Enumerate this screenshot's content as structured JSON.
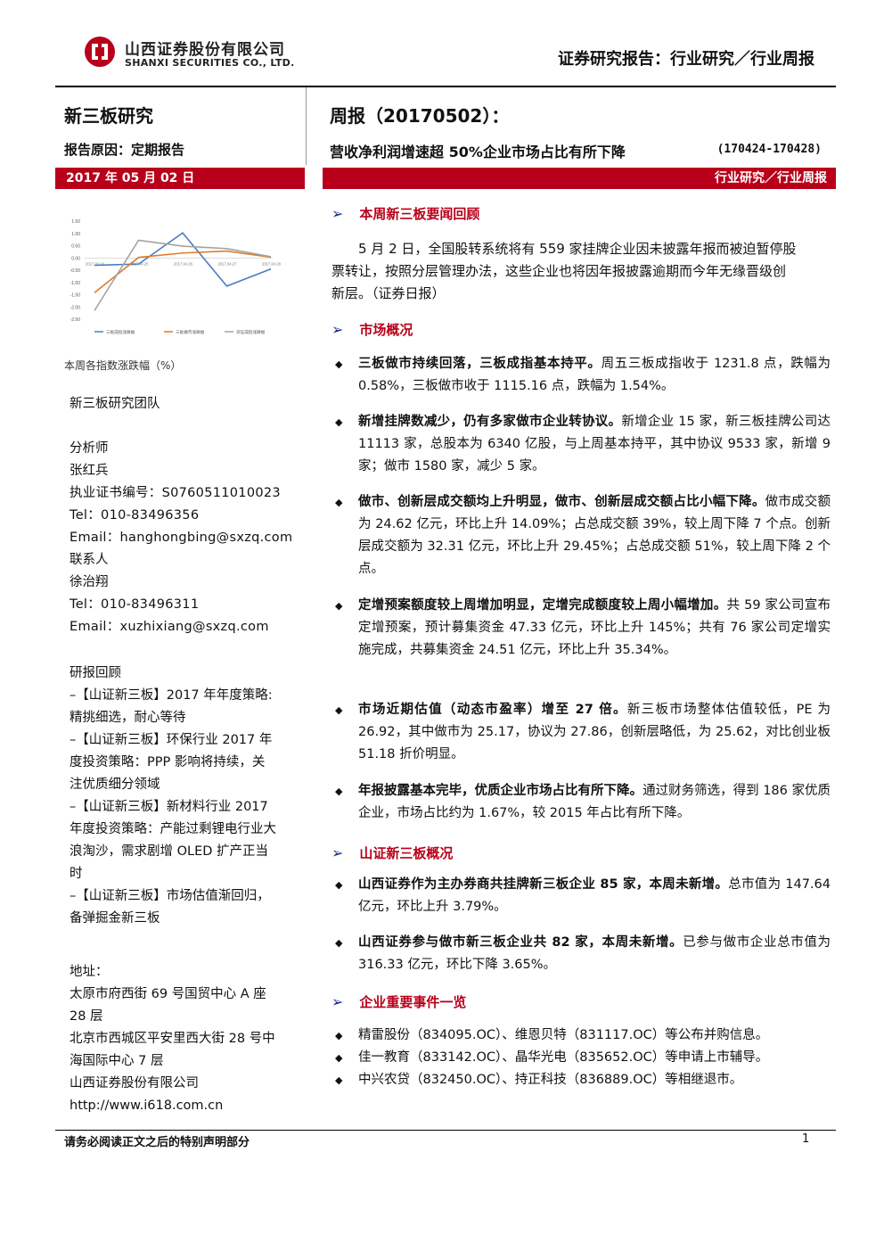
{
  "header": {
    "company_cn": "山西证券股份有限公司",
    "company_en": "SHANXI SECURITIES CO., LTD.",
    "report_type": "证券研究报告：行业研究／行业周报",
    "column_title": "新三板研究",
    "report_reason": "报告原因：定期报告",
    "week_title": "周报（20170502）：",
    "headline": "营收净利润增速超 50%企业市场占比有所下降",
    "date_range": "(170424-170428)",
    "date_bar": "2017 年 05 月 02 日",
    "category_bar": "行业研究／行业周报"
  },
  "colors": {
    "accent": "#b8001a",
    "series1": "#4a7ec0",
    "series2": "#e07b2a",
    "series3": "#a3a3a3"
  },
  "chart_data": {
    "type": "line",
    "caption": "本周各指数涨跌幅（%）",
    "y_ticks": [
      "1.50",
      "1.00",
      "0.50",
      "0.00",
      "-0.50",
      "-1.00",
      "-1.50",
      "-2.00",
      "-2.50"
    ],
    "ylim": [
      -2.5,
      1.5
    ],
    "x": [
      "2017.04.24",
      "2017.04.25",
      "2017.04.26",
      "2017.04.27",
      "2017.04.28"
    ],
    "series": [
      {
        "name": "三板成指涨跌幅",
        "values": [
          -0.3,
          -0.25,
          1.02,
          -1.15,
          -0.45
        ]
      },
      {
        "name": "三板做市涨跌幅",
        "values": [
          -1.42,
          0.02,
          0.2,
          0.28,
          0.03
        ]
      },
      {
        "name": "深证成指涨跌幅",
        "values": [
          -2.15,
          0.72,
          0.48,
          0.38,
          0.05
        ]
      }
    ],
    "legend_position": "bottom"
  },
  "left": {
    "team": "新三板研究团队",
    "analyst_label": "分析师",
    "analyst_name": "张红兵",
    "cert": "执业证书编号：S0760511010023",
    "tel1": "Tel：010-83496356",
    "email1": "Email：hanghongbing@sxzq.com",
    "contact_label": "联系人",
    "contact_name": "徐治翔",
    "tel2": "Tel：010-83496311",
    "email2": "Email：xuzhixiang@sxzq.com",
    "review_label": "研报回顾",
    "reviews": [
      [
        "–【山证新三板】2017 年年度策略:",
        "精挑细选，耐心等待"
      ],
      [
        "–【山证新三板】环保行业 2017 年",
        "度投资策略：PPP 影响将持续，关",
        "注优质细分领域"
      ],
      [
        "–【山证新三板】新材料行业 2017",
        "年度投资策略：产能过剩锂电行业大",
        "浪淘沙，需求剧增 OLED 扩产正当",
        "时"
      ],
      [
        "–【山证新三板】市场估值渐回归，",
        "备弹掘金新三板"
      ]
    ],
    "address_label": "地址：",
    "address_lines": [
      "太原市府西街 69 号国贸中心 A 座",
      "28 层",
      "北京市西城区平安里西大街 28 号中",
      "海国际中心 7 层",
      "山西证券股份有限公司",
      "http://www.i618.com.cn"
    ]
  },
  "right": {
    "sec1": "本周新三板要闻回顾",
    "news": [
      "5 月 2 日，全国股转系统将有 559 家挂牌企业因未披露年报而被迫暂停股",
      "票转让，按照分层管理办法，这些企业也将因年报披露逾期而今年无缘晋级创",
      "新层。（证券日报）"
    ],
    "sec2": "市场概况",
    "bullets": [
      {
        "bold": "三板做市持续回落，三板成指基本持平。",
        "rest": "周五三板成指收于 1231.8 点，跌幅为 0.58%，三板做市收于 1115.16 点，跌幅为 1.54%。"
      },
      {
        "bold": "新增挂牌数减少，仍有多家做市企业转协议。",
        "rest": "新增企业 15 家，新三板挂牌公司达 11113 家，总股本为 6340 亿股，与上周基本持平，其中协议 9533 家，新增 9 家；做市 1580 家，减少 5 家。"
      },
      {
        "bold": "做市、创新层成交额均上升明显，做市、创新层成交额占比小幅下降。",
        "rest": "做市成交额为 24.62 亿元，环比上升 14.09%；占总成交额 39%，较上周下降 7 个点。创新层成交额为 32.31 亿元，环比上升 29.45%；占总成交额 51%，较上周下降 2 个点。"
      },
      {
        "bold": "定增预案额度较上周增加明显，定增完成额度较上周小幅增加。",
        "rest": "共 59 家公司宣布定增预案，预计募集资金 47.33 亿元，环比上升 145%；共有 76 家公司定增实施完成，共募集资金 24.51 亿元，环比上升 35.34%。"
      },
      {
        "bold": "市场近期估值（动态市盈率）增至 27 倍。",
        "rest": "新三板市场整体估值较低，PE 为 26.92，其中做市为 25.17，协议为 27.86，创新层略低，为 25.62，对比创业板 51.18 折价明显。"
      },
      {
        "bold": "年报披露基本完毕，优质企业市场占比有所下降。",
        "rest": "通过财务筛选，得到 186 家优质企业，市场占比约为 1.67%，较 2015 年占比有所下降。"
      }
    ],
    "sec3": "山证新三板概况",
    "bullets2": [
      {
        "bold": "山西证券作为主办券商共挂牌新三板企业 85 家，本周未新增。",
        "rest": "总市值为 147.64 亿元，环比上升 3.79%。"
      },
      {
        "bold": "山西证券参与做市新三板企业共 82 家，本周未新增。",
        "rest": "已参与做市企业总市值为 316.33 亿元，环比下降 3.65%。"
      }
    ],
    "sec4": "企业重要事件一览",
    "events": [
      "精雷股份（834095.OC）、维恩贝特（831117.OC）等公布并购信息。",
      "佳一教育（833142.OC）、晶华光电（835652.OC）等申请上市辅导。",
      "中兴农贷（832450.OC）、持正科技（836889.OC）等相继退市。"
    ]
  },
  "footer": {
    "disclaimer": "请务必阅读正文之后的特别声明部分",
    "page": "1"
  }
}
